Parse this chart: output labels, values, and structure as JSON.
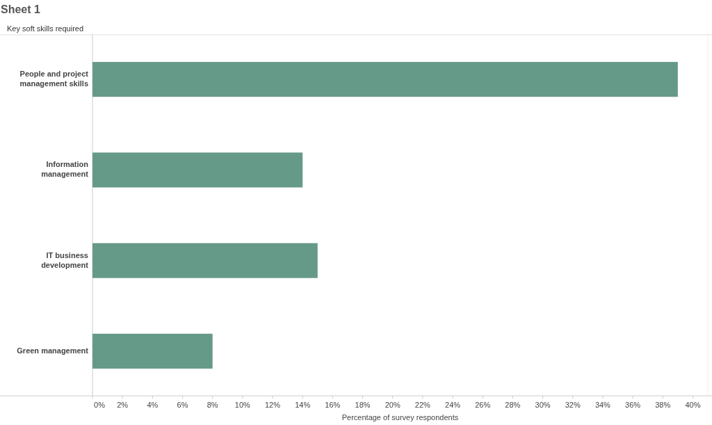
{
  "chart_data": {
    "type": "bar",
    "orientation": "horizontal",
    "title": "Sheet 1",
    "ylabel": "Key soft skills required",
    "xlabel": "Percentage of survey respondents",
    "categories": [
      "People and project management skills",
      "Information management",
      "IT business development",
      "Green management"
    ],
    "values": [
      39,
      14,
      15,
      8
    ],
    "color": "#669a88",
    "xlim": [
      0,
      41
    ],
    "xticks": [
      {
        "value": 0,
        "label": "0%"
      },
      {
        "value": 2,
        "label": "2%"
      },
      {
        "value": 4,
        "label": "4%"
      },
      {
        "value": 6,
        "label": "6%"
      },
      {
        "value": 8,
        "label": "8%"
      },
      {
        "value": 10,
        "label": "10%"
      },
      {
        "value": 12,
        "label": "12%"
      },
      {
        "value": 14,
        "label": "14%"
      },
      {
        "value": 16,
        "label": "16%"
      },
      {
        "value": 18,
        "label": "18%"
      },
      {
        "value": 20,
        "label": "20%"
      },
      {
        "value": 22,
        "label": "22%"
      },
      {
        "value": 24,
        "label": "24%"
      },
      {
        "value": 26,
        "label": "26%"
      },
      {
        "value": 28,
        "label": "28%"
      },
      {
        "value": 30,
        "label": "30%"
      },
      {
        "value": 32,
        "label": "32%"
      },
      {
        "value": 34,
        "label": "34%"
      },
      {
        "value": 36,
        "label": "36%"
      },
      {
        "value": 38,
        "label": "38%"
      },
      {
        "value": 40,
        "label": "40%"
      }
    ],
    "grid": false
  }
}
